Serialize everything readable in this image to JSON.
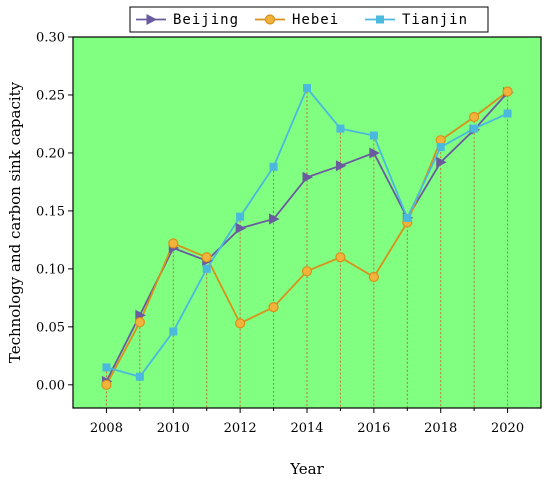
{
  "chart_data": {
    "type": "line",
    "title": "",
    "xlabel": "Year",
    "ylabel": "Technology and carbon sink capacity",
    "x": [
      2008,
      2009,
      2010,
      2011,
      2012,
      2013,
      2014,
      2015,
      2016,
      2017,
      2018,
      2019,
      2020
    ],
    "xticks": [
      "2008",
      "2010",
      "2012",
      "2014",
      "2016",
      "2018",
      "2020"
    ],
    "yticks": [
      "0.00",
      "0.05",
      "0.10",
      "0.15",
      "0.20",
      "0.25",
      "0.30"
    ],
    "xlim": [
      2007,
      2021
    ],
    "ylim": [
      -0.02,
      0.3
    ],
    "legend_position": "top",
    "background_color": "#80ff80",
    "series": [
      {
        "name": "Beijing",
        "marker": "triangle-right",
        "color": "#6a5aa0",
        "values": [
          0.003,
          0.06,
          0.118,
          0.107,
          0.135,
          0.143,
          0.179,
          0.189,
          0.2,
          0.144,
          0.192,
          0.22,
          0.252
        ]
      },
      {
        "name": "Hebei",
        "marker": "circle",
        "color": "#d9901a",
        "values": [
          0.0,
          0.054,
          0.122,
          0.11,
          0.053,
          0.067,
          0.098,
          0.11,
          0.093,
          0.14,
          0.211,
          0.231,
          0.253
        ]
      },
      {
        "name": "Tianjin",
        "marker": "square",
        "color": "#4bb8de",
        "values": [
          0.015,
          0.007,
          0.046,
          0.1,
          0.145,
          0.188,
          0.256,
          0.221,
          0.215,
          0.144,
          0.205,
          0.221,
          0.234
        ]
      }
    ]
  }
}
